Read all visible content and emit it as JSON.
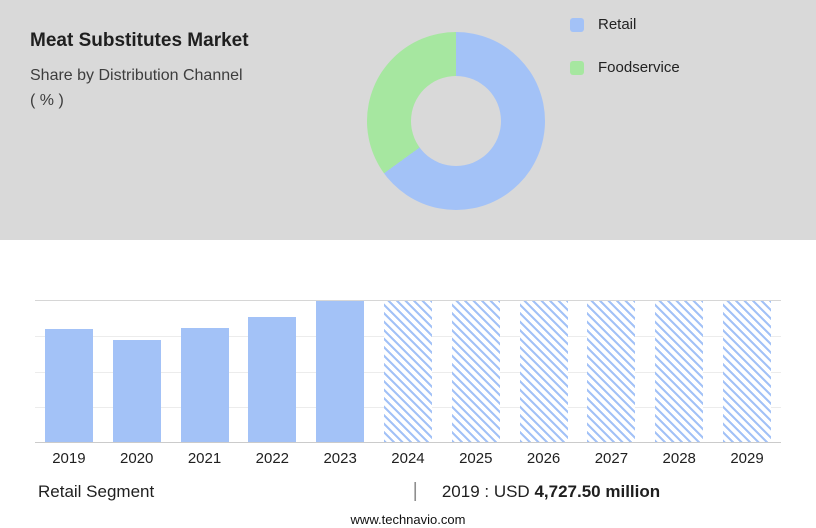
{
  "header": {
    "title": "Meat Substitutes Market",
    "subtitle": "Share by Distribution Channel",
    "unit": "( % )"
  },
  "legend": [
    {
      "label": "Retail",
      "color": "#a3c2f7"
    },
    {
      "label": "Foodservice",
      "color": "#a6e7a0"
    }
  ],
  "chart_data": [
    {
      "type": "pie",
      "title": "Meat Substitutes Market — Share by Distribution Channel ( % )",
      "labels": [
        "Retail",
        "Foodservice"
      ],
      "values": [
        65,
        35
      ],
      "colors": [
        "#a3c2f7",
        "#a6e7a0"
      ],
      "legend_position": "right",
      "style": "donut"
    },
    {
      "type": "bar",
      "categories": [
        "2019",
        "2020",
        "2021",
        "2022",
        "2023",
        "2024",
        "2025",
        "2026",
        "2027",
        "2028",
        "2029"
      ],
      "series": [
        {
          "name": "Retail segment (historic, relative height %)",
          "values": [
            80,
            72,
            81,
            89,
            100,
            null,
            null,
            null,
            null,
            null,
            null
          ]
        },
        {
          "name": "Retail segment (forecast placeholder, hatched)",
          "values": [
            null,
            null,
            null,
            null,
            null,
            100,
            100,
            100,
            100,
            100,
            100
          ]
        }
      ],
      "xlabel": "",
      "ylabel": "",
      "ylim": [
        0,
        100
      ],
      "grid": true,
      "bar_color": "#a3c2f7",
      "forecast_pattern": "diagonal-hatch"
    }
  ],
  "footer": {
    "segment_label": "Retail Segment",
    "divider": "|",
    "value_prefix": "2019 : USD",
    "value_bold": "4,727.50 million",
    "website": "www.technavio.com"
  }
}
